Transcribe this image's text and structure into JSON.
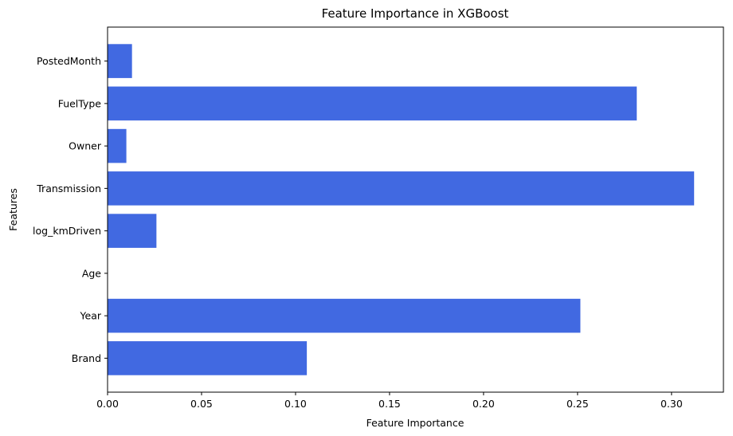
{
  "chart_data": {
    "type": "bar",
    "orientation": "horizontal",
    "title": "Feature Importance in XGBoost",
    "xlabel": "Feature Importance",
    "ylabel": "Features",
    "categories": [
      "Brand",
      "Year",
      "Age",
      "log_kmDriven",
      "Transmission",
      "Owner",
      "FuelType",
      "PostedMonth"
    ],
    "values": [
      0.106,
      0.2515,
      0.0,
      0.026,
      0.312,
      0.01,
      0.2815,
      0.013
    ],
    "xlim": [
      0,
      0.3276
    ],
    "xticks": [
      0.0,
      0.05,
      0.1,
      0.15,
      0.2,
      0.25,
      0.3
    ],
    "xtick_labels": [
      "0.00",
      "0.05",
      "0.10",
      "0.15",
      "0.20",
      "0.25",
      "0.30"
    ],
    "bar_color": "#4169e1",
    "grid": false,
    "legend": "none"
  }
}
